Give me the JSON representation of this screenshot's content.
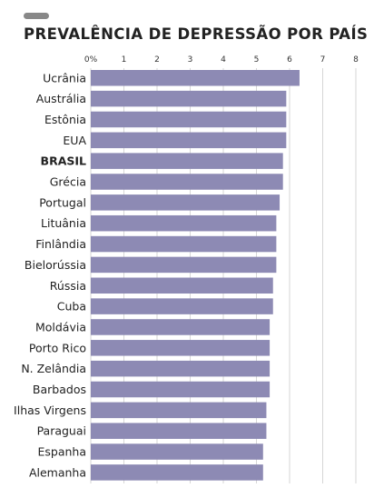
{
  "header": {
    "title": "PREVALÊNCIA DE DEPRESSÃO POR PAÍS",
    "pill_color": "#888888"
  },
  "chart_data": {
    "type": "bar",
    "orientation": "horizontal",
    "title": "PREVALÊNCIA DE DEPRESSÃO POR PAÍS",
    "xlabel": "",
    "ylabel": "",
    "xlim": [
      0,
      8
    ],
    "ticks": [
      "0%",
      "1",
      "2",
      "3",
      "4",
      "5",
      "6",
      "7",
      "8"
    ],
    "grid": true,
    "bar_color": "#8d8ab4",
    "highlight": "BRASIL",
    "categories": [
      "Ucrânia",
      "Austrália",
      "Estônia",
      "EUA",
      "BRASIL",
      "Grécia",
      "Portugal",
      "Lituânia",
      "Finlândia",
      "Bielorússia",
      "Rússia",
      "Cuba",
      "Moldávia",
      "Porto Rico",
      "N. Zelândia",
      "Barbados",
      "Ilhas Virgens",
      "Paraguai",
      "Espanha",
      "Alemanha"
    ],
    "values": [
      6.3,
      5.9,
      5.9,
      5.9,
      5.8,
      5.8,
      5.7,
      5.6,
      5.6,
      5.6,
      5.5,
      5.5,
      5.4,
      5.4,
      5.4,
      5.4,
      5.3,
      5.3,
      5.2,
      5.2
    ]
  }
}
